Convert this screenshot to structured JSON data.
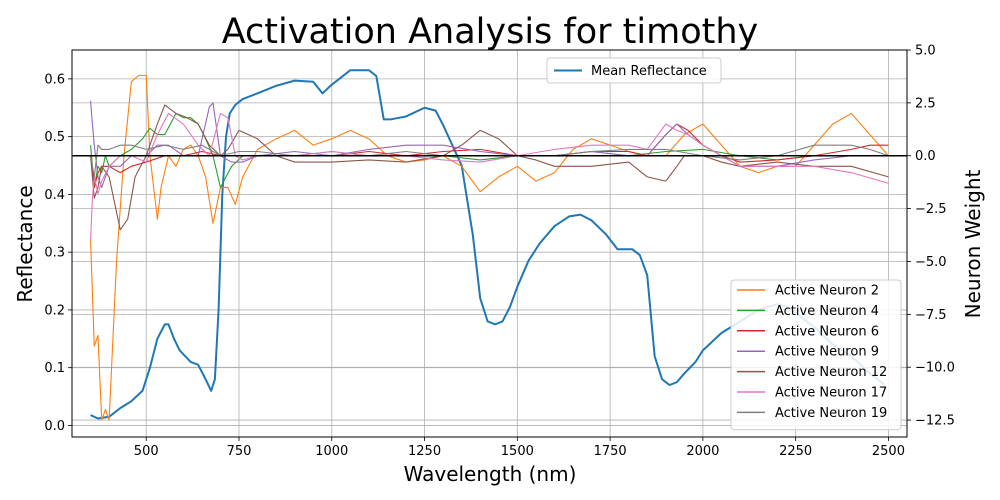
{
  "chart_data": {
    "type": "line",
    "title": "Activation Analysis for timothy",
    "xlabel": "Wavelength (nm)",
    "ylabel_left": "Reflectance",
    "ylabel_right": "Neuron Weight",
    "xlim": [
      300,
      2550
    ],
    "ylim_left": [
      -0.02,
      0.65
    ],
    "ylim_right": [
      -13.3,
      5.0
    ],
    "x_ticks": [
      500,
      750,
      1000,
      1250,
      1500,
      1750,
      2000,
      2250,
      2500
    ],
    "y_left_ticks": [
      0.0,
      0.1,
      0.2,
      0.3,
      0.4,
      0.5,
      0.6
    ],
    "y_right_ticks": [
      -12.5,
      -10.0,
      -7.5,
      -5.0,
      -2.5,
      0.0,
      2.5,
      5.0
    ],
    "grid": true,
    "zero_line_right": 0.0,
    "reflectance_series": {
      "name": "Mean Reflectance",
      "color": "#1f77b4",
      "x": [
        350,
        370,
        400,
        430,
        460,
        490,
        510,
        530,
        550,
        560,
        575,
        590,
        605,
        620,
        640,
        660,
        675,
        685,
        695,
        705,
        715,
        725,
        740,
        760,
        800,
        850,
        900,
        950,
        975,
        1000,
        1050,
        1100,
        1120,
        1140,
        1160,
        1200,
        1250,
        1280,
        1300,
        1350,
        1380,
        1400,
        1420,
        1440,
        1460,
        1480,
        1500,
        1530,
        1560,
        1600,
        1640,
        1670,
        1700,
        1740,
        1770,
        1790,
        1810,
        1830,
        1850,
        1870,
        1890,
        1910,
        1930,
        1950,
        1980,
        2000,
        2050,
        2100,
        2150,
        2200,
        2230,
        2260,
        2300,
        2350,
        2400,
        2450,
        2490
      ],
      "y": [
        0.018,
        0.012,
        0.015,
        0.03,
        0.042,
        0.06,
        0.1,
        0.15,
        0.175,
        0.175,
        0.15,
        0.13,
        0.12,
        0.11,
        0.105,
        0.08,
        0.06,
        0.08,
        0.2,
        0.4,
        0.5,
        0.54,
        0.555,
        0.565,
        0.575,
        0.588,
        0.597,
        0.595,
        0.575,
        0.59,
        0.615,
        0.615,
        0.605,
        0.53,
        0.53,
        0.535,
        0.55,
        0.545,
        0.52,
        0.45,
        0.33,
        0.22,
        0.18,
        0.175,
        0.18,
        0.205,
        0.24,
        0.285,
        0.315,
        0.345,
        0.362,
        0.365,
        0.355,
        0.33,
        0.305,
        0.305,
        0.305,
        0.295,
        0.26,
        0.12,
        0.08,
        0.07,
        0.075,
        0.09,
        0.11,
        0.13,
        0.16,
        0.18,
        0.2,
        0.21,
        0.205,
        0.19,
        0.17,
        0.14,
        0.12,
        0.09,
        0.07
      ]
    },
    "neuron_series": [
      {
        "name": "Active Neuron 2",
        "color": "#ff7f0e",
        "x": [
          350,
          360,
          370,
          380,
          390,
          400,
          420,
          440,
          460,
          480,
          500,
          510,
          520,
          530,
          540,
          560,
          580,
          600,
          620,
          640,
          660,
          680,
          700,
          720,
          740,
          760,
          800,
          850,
          900,
          950,
          1000,
          1050,
          1100,
          1150,
          1200,
          1250,
          1300,
          1350,
          1400,
          1450,
          1500,
          1550,
          1600,
          1650,
          1700,
          1750,
          1800,
          1850,
          1900,
          1950,
          2000,
          2050,
          2100,
          2150,
          2200,
          2250,
          2300,
          2350,
          2400,
          2450,
          2500
        ],
        "y": [
          -4.0,
          -9.0,
          -8.5,
          -12.5,
          -12.0,
          -12.5,
          -5.0,
          0.0,
          3.5,
          3.8,
          3.8,
          0.0,
          -1.5,
          -3.0,
          -1.5,
          0.0,
          -0.5,
          0.3,
          0.5,
          0.0,
          -1.0,
          -3.2,
          -1.5,
          -1.5,
          -2.3,
          -1.0,
          0.3,
          0.8,
          1.2,
          0.5,
          0.8,
          1.2,
          0.8,
          0.0,
          -0.3,
          -0.2,
          0.0,
          -0.5,
          -1.7,
          -1.0,
          -0.5,
          -1.2,
          -0.8,
          0.3,
          0.8,
          0.5,
          0.2,
          0.0,
          0.0,
          1.0,
          1.5,
          0.5,
          -0.5,
          -0.8,
          -0.5,
          -0.5,
          0.5,
          1.5,
          2.0,
          1.0,
          0.0
        ]
      },
      {
        "name": "Active Neuron 4",
        "color": "#2ca02c",
        "x": [
          350,
          360,
          370,
          380,
          390,
          400,
          430,
          460,
          490,
          510,
          530,
          550,
          580,
          600,
          620,
          640,
          660,
          680,
          700,
          730,
          760,
          800,
          900,
          1000,
          1100,
          1200,
          1300,
          1400,
          1500,
          1600,
          1700,
          1800,
          1900,
          2000,
          2100,
          2200,
          2300,
          2400,
          2500
        ],
        "y": [
          0.5,
          -1.5,
          -0.5,
          -0.8,
          0.0,
          -0.5,
          0.0,
          0.3,
          0.8,
          1.3,
          1.0,
          1.0,
          2.0,
          1.8,
          1.8,
          1.5,
          0.8,
          0.0,
          -1.5,
          -0.5,
          0.0,
          0.0,
          0.0,
          0.2,
          0.0,
          0.0,
          0.0,
          -0.2,
          0.0,
          0.0,
          0.2,
          0.0,
          0.2,
          0.3,
          0.0,
          -0.2,
          0.0,
          0.0,
          0.0
        ]
      },
      {
        "name": "Active Neuron 6",
        "color": "#d62728",
        "x": [
          350,
          360,
          370,
          380,
          400,
          430,
          460,
          500,
          550,
          600,
          650,
          700,
          750,
          800,
          900,
          1000,
          1100,
          1200,
          1300,
          1400,
          1500,
          1600,
          1700,
          1800,
          1850,
          1900,
          1930,
          1960,
          2000,
          2050,
          2100,
          2200,
          2300,
          2400,
          2450,
          2500
        ],
        "y": [
          0.0,
          -1.5,
          -0.8,
          -0.5,
          -0.5,
          -0.8,
          -0.5,
          -0.3,
          0.0,
          0.0,
          0.2,
          0.0,
          0.0,
          0.0,
          0.0,
          0.0,
          0.2,
          0.0,
          0.2,
          0.3,
          0.0,
          0.0,
          0.2,
          0.2,
          0.0,
          1.0,
          1.5,
          1.2,
          0.5,
          0.0,
          -0.3,
          -0.2,
          0.0,
          0.3,
          0.5,
          0.5
        ]
      },
      {
        "name": "Active Neuron 9",
        "color": "#9467bd",
        "x": [
          350,
          355,
          360,
          370,
          380,
          400,
          430,
          460,
          500,
          530,
          560,
          600,
          640,
          670,
          680,
          700,
          730,
          760,
          800,
          900,
          1000,
          1100,
          1200,
          1300,
          1400,
          1500,
          1600,
          1700,
          1800,
          1850,
          1900,
          1930,
          1960,
          2000,
          2100,
          2200,
          2300,
          2400,
          2500
        ],
        "y": [
          2.6,
          1.5,
          0.5,
          -1.0,
          -1.5,
          -0.5,
          -0.5,
          0.0,
          0.0,
          0.5,
          0.5,
          0.0,
          0.0,
          2.3,
          2.5,
          0.0,
          -0.3,
          -0.3,
          0.0,
          0.2,
          0.0,
          0.3,
          0.5,
          0.5,
          0.2,
          0.0,
          0.0,
          0.2,
          0.0,
          0.0,
          1.0,
          1.5,
          1.0,
          0.5,
          -0.5,
          -0.5,
          -0.2,
          0.0,
          0.0
        ]
      },
      {
        "name": "Active Neuron 12",
        "color": "#8c564b",
        "x": [
          350,
          360,
          370,
          380,
          400,
          430,
          450,
          470,
          500,
          530,
          550,
          580,
          610,
          640,
          670,
          700,
          720,
          750,
          800,
          850,
          900,
          1000,
          1100,
          1200,
          1300,
          1350,
          1400,
          1450,
          1500,
          1550,
          1600,
          1700,
          1800,
          1850,
          1900,
          1930,
          1950,
          2000,
          2050,
          2100,
          2200,
          2300,
          2400,
          2500
        ],
        "y": [
          0.0,
          -2.0,
          -1.5,
          -0.5,
          -1.0,
          -3.5,
          -3.0,
          -1.0,
          0.0,
          1.5,
          2.4,
          2.0,
          1.8,
          1.5,
          0.5,
          0.0,
          0.3,
          1.2,
          0.8,
          0.0,
          -0.3,
          -0.3,
          -0.2,
          -0.3,
          0.0,
          0.5,
          1.2,
          0.8,
          0.0,
          -0.2,
          -0.5,
          -0.5,
          -0.3,
          -1.0,
          -1.2,
          -0.5,
          0.0,
          0.0,
          -0.3,
          -0.5,
          -0.3,
          -0.5,
          -0.5,
          -1.0
        ]
      },
      {
        "name": "Active Neuron 17",
        "color": "#e377c2",
        "x": [
          350,
          355,
          360,
          370,
          380,
          400,
          430,
          460,
          500,
          530,
          560,
          600,
          640,
          670,
          700,
          720,
          740,
          760,
          800,
          900,
          1000,
          1100,
          1200,
          1300,
          1400,
          1500,
          1600,
          1700,
          1800,
          1850,
          1900,
          1930,
          1960,
          2000,
          2050,
          2100,
          2200,
          2300,
          2400,
          2500
        ],
        "y": [
          -4.0,
          -2.0,
          -1.0,
          -1.8,
          -1.2,
          -0.5,
          0.0,
          0.0,
          -0.3,
          1.0,
          2.0,
          1.5,
          0.5,
          0.0,
          2.0,
          1.8,
          0.0,
          -0.2,
          0.0,
          0.0,
          0.2,
          0.0,
          0.0,
          -0.2,
          -0.3,
          0.0,
          0.3,
          0.5,
          0.5,
          0.3,
          1.5,
          1.2,
          1.0,
          0.5,
          0.0,
          -0.5,
          -0.5,
          -0.5,
          -0.8,
          -1.3
        ]
      },
      {
        "name": "Active Neuron 19",
        "color": "#7f7f7f",
        "x": [
          350,
          360,
          370,
          380,
          400,
          430,
          460,
          500,
          550,
          600,
          650,
          700,
          750,
          800,
          900,
          1000,
          1100,
          1200,
          1300,
          1400,
          1500,
          1600,
          1700,
          1800,
          1900,
          2000,
          2100,
          2200,
          2300,
          2350,
          2400,
          2450,
          2500
        ],
        "y": [
          0.0,
          -1.0,
          0.5,
          0.3,
          0.3,
          0.5,
          0.5,
          0.3,
          0.5,
          0.3,
          0.5,
          0.0,
          0.2,
          0.2,
          0.0,
          0.0,
          0.0,
          0.2,
          0.0,
          0.0,
          0.0,
          0.0,
          0.2,
          0.3,
          0.3,
          0.0,
          -0.2,
          0.0,
          0.5,
          0.5,
          0.5,
          0.3,
          0.0
        ]
      }
    ],
    "legends": {
      "top": {
        "position": "top-center"
      },
      "bottom": {
        "position": "lower-right"
      }
    }
  }
}
